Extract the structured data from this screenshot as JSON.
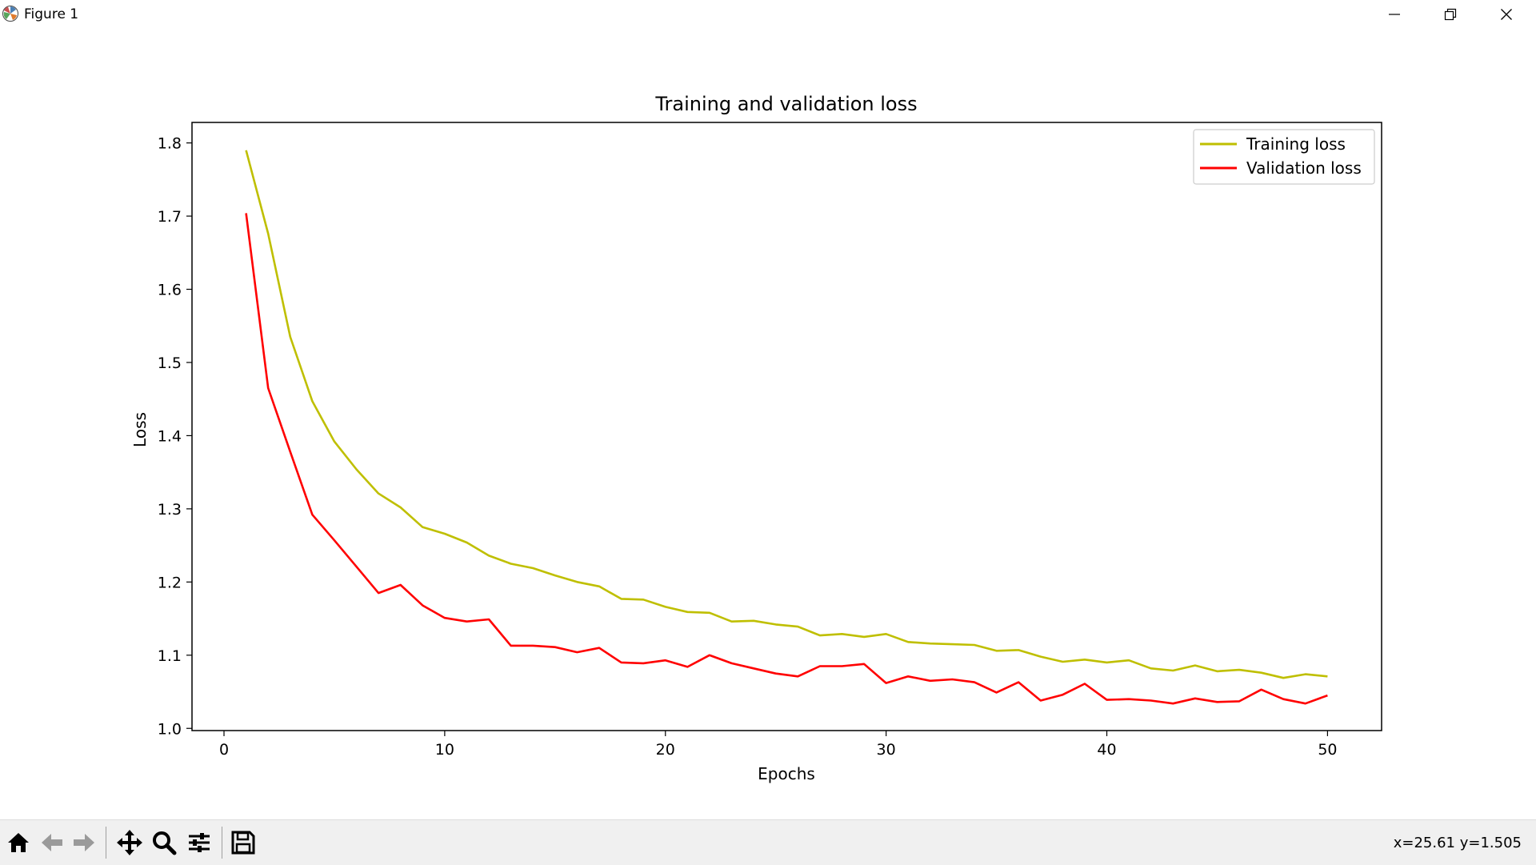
{
  "window": {
    "title": "Figure 1",
    "app_icon": "matplotlib-icon",
    "controls": [
      "minimize-icon",
      "restore-icon",
      "close-icon"
    ]
  },
  "toolbar": {
    "buttons": [
      "home-icon",
      "back-arrow-icon",
      "forward-arrow-icon",
      "pan-icon",
      "zoom-icon",
      "configure-subplots-icon",
      "save-icon"
    ],
    "coords_text": "x=25.61 y=1.505"
  },
  "chart_data": {
    "type": "line",
    "title": "Training and validation loss",
    "xlabel": "Epochs",
    "ylabel": "Loss",
    "xlim": [
      -1.45,
      52.45
    ],
    "ylim": [
      0.997,
      1.828
    ],
    "xticks": [
      0,
      10,
      20,
      30,
      40,
      50
    ],
    "yticks": [
      1.0,
      1.1,
      1.2,
      1.3,
      1.4,
      1.5,
      1.6,
      1.7,
      1.8
    ],
    "ytick_labels": [
      "1.0",
      "1.1",
      "1.2",
      "1.3",
      "1.4",
      "1.5",
      "1.6",
      "1.7",
      "1.8"
    ],
    "grid": false,
    "legend": "upper-right",
    "x": [
      1,
      2,
      3,
      4,
      5,
      6,
      7,
      8,
      9,
      10,
      11,
      12,
      13,
      14,
      15,
      16,
      17,
      18,
      19,
      20,
      21,
      22,
      23,
      24,
      25,
      26,
      27,
      28,
      29,
      30,
      31,
      32,
      33,
      34,
      35,
      36,
      37,
      38,
      39,
      40,
      41,
      42,
      43,
      44,
      45,
      46,
      47,
      48,
      49,
      50
    ],
    "series": [
      {
        "name": "Training loss",
        "color": "#bfbf00",
        "values": [
          1.79,
          1.676,
          1.535,
          1.447,
          1.392,
          1.354,
          1.321,
          1.302,
          1.275,
          1.266,
          1.254,
          1.236,
          1.225,
          1.219,
          1.209,
          1.2,
          1.194,
          1.177,
          1.176,
          1.166,
          1.159,
          1.158,
          1.146,
          1.147,
          1.142,
          1.139,
          1.127,
          1.129,
          1.125,
          1.129,
          1.118,
          1.116,
          1.115,
          1.114,
          1.106,
          1.107,
          1.098,
          1.091,
          1.094,
          1.09,
          1.093,
          1.082,
          1.079,
          1.086,
          1.078,
          1.08,
          1.076,
          1.069,
          1.074,
          1.071
        ]
      },
      {
        "name": "Validation loss",
        "color": "#ff0000",
        "values": [
          1.704,
          1.465,
          1.378,
          1.292,
          1.257,
          1.221,
          1.185,
          1.196,
          1.168,
          1.151,
          1.146,
          1.149,
          1.113,
          1.113,
          1.111,
          1.104,
          1.11,
          1.09,
          1.089,
          1.093,
          1.084,
          1.1,
          1.089,
          1.082,
          1.075,
          1.071,
          1.085,
          1.085,
          1.088,
          1.062,
          1.071,
          1.065,
          1.067,
          1.063,
          1.049,
          1.063,
          1.038,
          1.046,
          1.061,
          1.039,
          1.04,
          1.038,
          1.034,
          1.041,
          1.036,
          1.037,
          1.053,
          1.04,
          1.034,
          1.045
        ]
      }
    ]
  }
}
